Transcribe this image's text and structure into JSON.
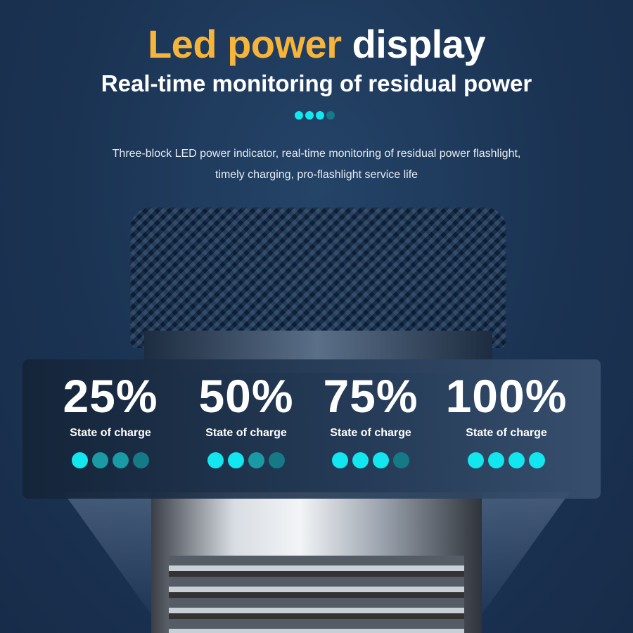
{
  "title": {
    "accent": "Led power",
    "rest": "display"
  },
  "subtitle": "Real-time monitoring of residual power",
  "description": [
    "Three-block LED power indicator, real-time monitoring of residual power flashlight,",
    "timely charging, pro-flashlight service life"
  ],
  "colors": {
    "accent": "#f7b43a",
    "dot_on": "#12e6ee",
    "dot_off": "#1a9aa4",
    "dot_dim": "#157a86"
  },
  "header_dots": {
    "on": 3,
    "total": 4
  },
  "levels": [
    {
      "percent": "25%",
      "label": "State of charge",
      "lit": 1,
      "total": 4
    },
    {
      "percent": "50%",
      "label": "State of charge",
      "lit": 2,
      "total": 4
    },
    {
      "percent": "75%",
      "label": "State of charge",
      "lit": 3,
      "total": 4
    },
    {
      "percent": "100%",
      "label": "State of charge",
      "lit": 4,
      "total": 4
    }
  ]
}
